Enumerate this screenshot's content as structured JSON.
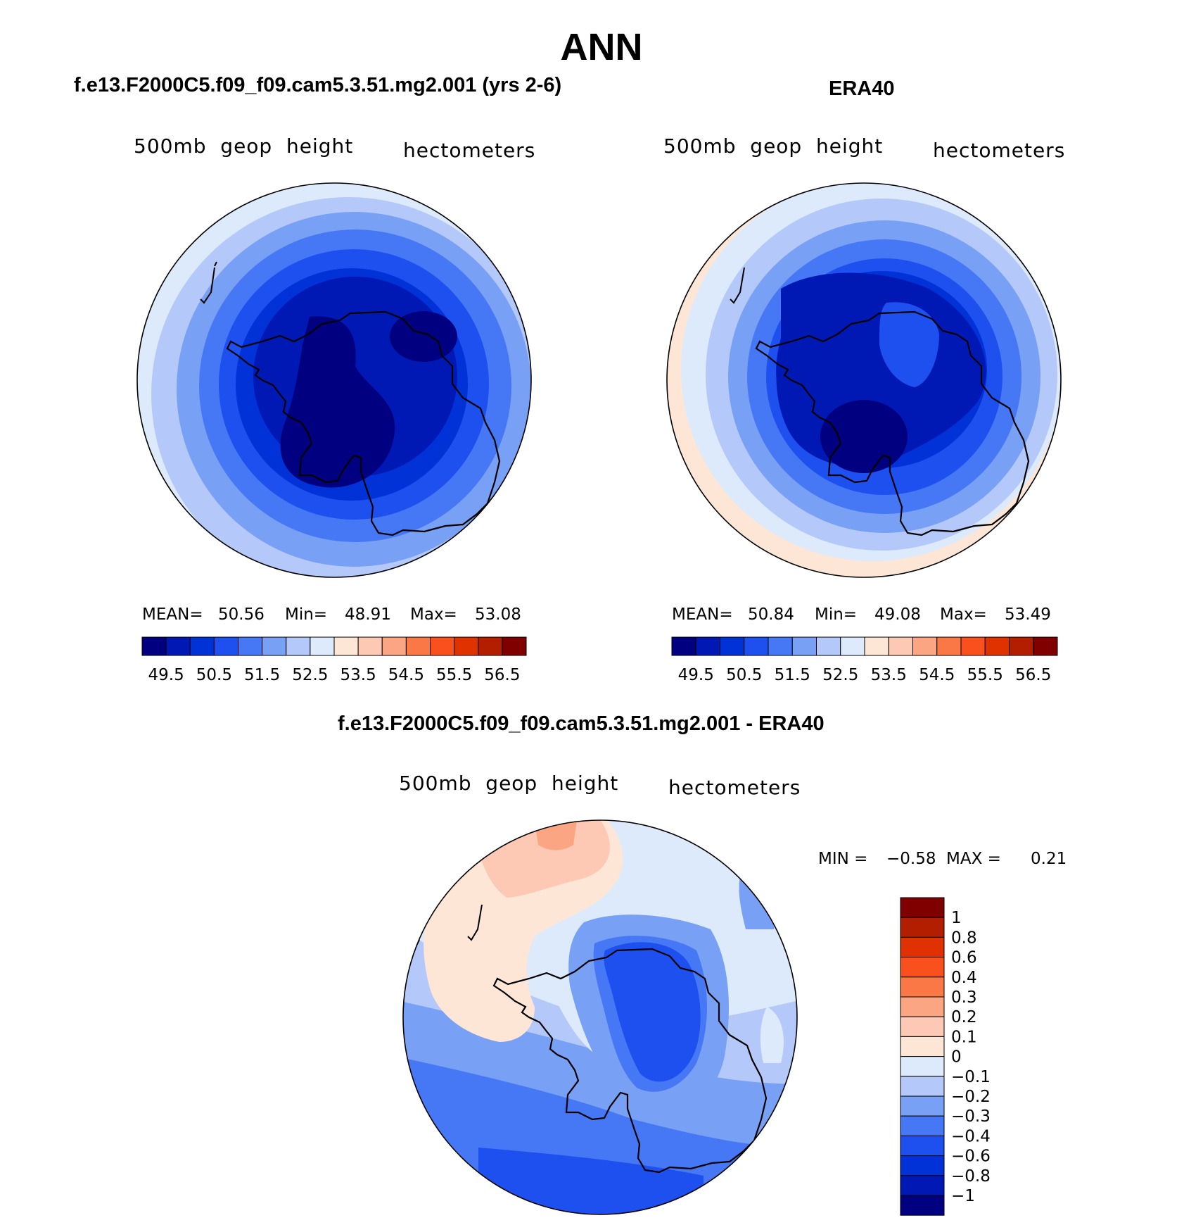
{
  "title": "ANN",
  "panels": [
    {
      "id": "model",
      "case_title": "f.e13.F2000C5.f09_f09.cam5.3.51.mg2.001 (yrs 2-6)",
      "variable": "500mb  geop  height",
      "units": "hectometers",
      "stats": {
        "mean_label": "MEAN=",
        "mean": "50.56",
        "min_label": "Min=",
        "min": "48.91",
        "max_label": "Max=",
        "max": "53.08"
      }
    },
    {
      "id": "obs",
      "case_title": "ERA40",
      "variable": "500mb  geop  height",
      "units": "hectometers",
      "stats": {
        "mean_label": "MEAN=",
        "mean": "50.84",
        "min_label": "Min=",
        "min": "49.08",
        "max_label": "Max=",
        "max": "53.49"
      }
    }
  ],
  "colorbar_top": {
    "levels": [
      "49.5",
      "50.5",
      "51.5",
      "52.5",
      "53.5",
      "54.5",
      "55.5",
      "56.5"
    ],
    "colors": [
      "#000080",
      "#0019b4",
      "#0032d7",
      "#1e50f0",
      "#4678f5",
      "#78a0f5",
      "#b4c8fa",
      "#dceafc",
      "#fde6d6",
      "#fdc8b4",
      "#fca582",
      "#fa7846",
      "#fa501e",
      "#e03200",
      "#b41e00",
      "#800000"
    ]
  },
  "diff_panel": {
    "case_title": "f.e13.F2000C5.f09_f09.cam5.3.51.mg2.001 - ERA40",
    "variable": "500mb  geop  height",
    "units": "hectometers",
    "stats": {
      "min_label": "MIN =",
      "min": "−0.58",
      "max_label": "MAX =",
      "max": "0.21"
    }
  },
  "colorbar_diff": {
    "levels": [
      "1",
      "0.8",
      "0.6",
      "0.4",
      "0.3",
      "0.2",
      "0.1",
      "0",
      "−0.1",
      "−0.2",
      "−0.3",
      "−0.4",
      "−0.6",
      "−0.8",
      "−1"
    ],
    "colors": [
      "#800000",
      "#b41e00",
      "#e03200",
      "#fa501e",
      "#fa7846",
      "#fca582",
      "#fdc8b4",
      "#fde6d6",
      "#dceafc",
      "#b4c8fa",
      "#78a0f5",
      "#4678f5",
      "#1e50f0",
      "#0032d7",
      "#0019b4",
      "#000080"
    ]
  }
}
